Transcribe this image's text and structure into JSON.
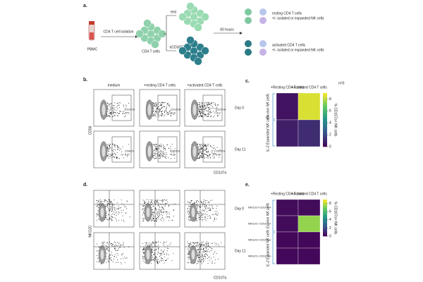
{
  "panel_a": {
    "label": "a.",
    "pbmc": "PBMC",
    "isolation": "CD4 T cell isolation",
    "cd4": "CD4 T cells",
    "rest": "rest",
    "stim": "αCD3/CD28",
    "hours": "60 hours",
    "resting": "resting CD4 T cells",
    "resting_sub": "+/- isolated or expanded NK cells",
    "activated": "activated CD4 T cells",
    "activated_sub": "+/- isolated or expanded NK cells"
  },
  "panel_b": {
    "label": "b.",
    "columns": [
      "medium",
      "+resting CD4 T cells",
      "+activated CD4 T cells"
    ],
    "rows": [
      "Day 0",
      "Day 11"
    ],
    "y_label": "CD56",
    "x_label": "CD107a",
    "gates": [
      [
        "CD107a+",
        "CD107a+",
        "CD107a+"
      ],
      [
        "CD107a",
        "CD107a",
        "CD107a"
      ]
    ],
    "gate_values": [
      [
        "4.71",
        "5.16",
        "10.2"
      ],
      [
        "3.97",
        "4.36",
        "5.98"
      ]
    ]
  },
  "panel_c": {
    "label": "c.",
    "columns": [
      "+Resting CD4 T cells",
      "+Activated CD4 T cells"
    ],
    "n": "n=5",
    "row_groups": [
      "Ex-vivo NK cells",
      "IL-2 Expanded NK cells"
    ],
    "values": [
      [
        0.5,
        8.5
      ],
      [
        0.8,
        1.2
      ]
    ],
    "clim": [
      0,
      9
    ],
    "cticks": [
      0,
      2,
      4,
      6,
      8
    ],
    "colorbar_label": "% CD107a+ NK cells"
  },
  "panel_d": {
    "label": "d.",
    "rows": [
      "Day 0",
      "Day 11"
    ],
    "y_label": "NKG2C",
    "x_label": "CD107a"
  },
  "panel_e": {
    "label": "e.",
    "columns": [
      "+Resting CD4 T cells",
      "+Activated CD4 T cells"
    ],
    "row_groups": [
      "Ex-vivo NK cells",
      "IL-2 Expanded NK cells"
    ],
    "row_labels": [
      "NKG2C+CD107a+",
      "NKG2C−CD107a+",
      "NKG2C+CD107a+",
      "NKG2C−CD107a+"
    ],
    "values": [
      [
        0.3,
        0.3
      ],
      [
        0.3,
        7.5
      ],
      [
        0.2,
        0.2
      ],
      [
        0.2,
        0.2
      ]
    ],
    "clim": [
      0,
      9
    ],
    "cticks": [
      0,
      2,
      4,
      6,
      8
    ],
    "colorbar_label": "% CD107a+ NK cells"
  }
}
